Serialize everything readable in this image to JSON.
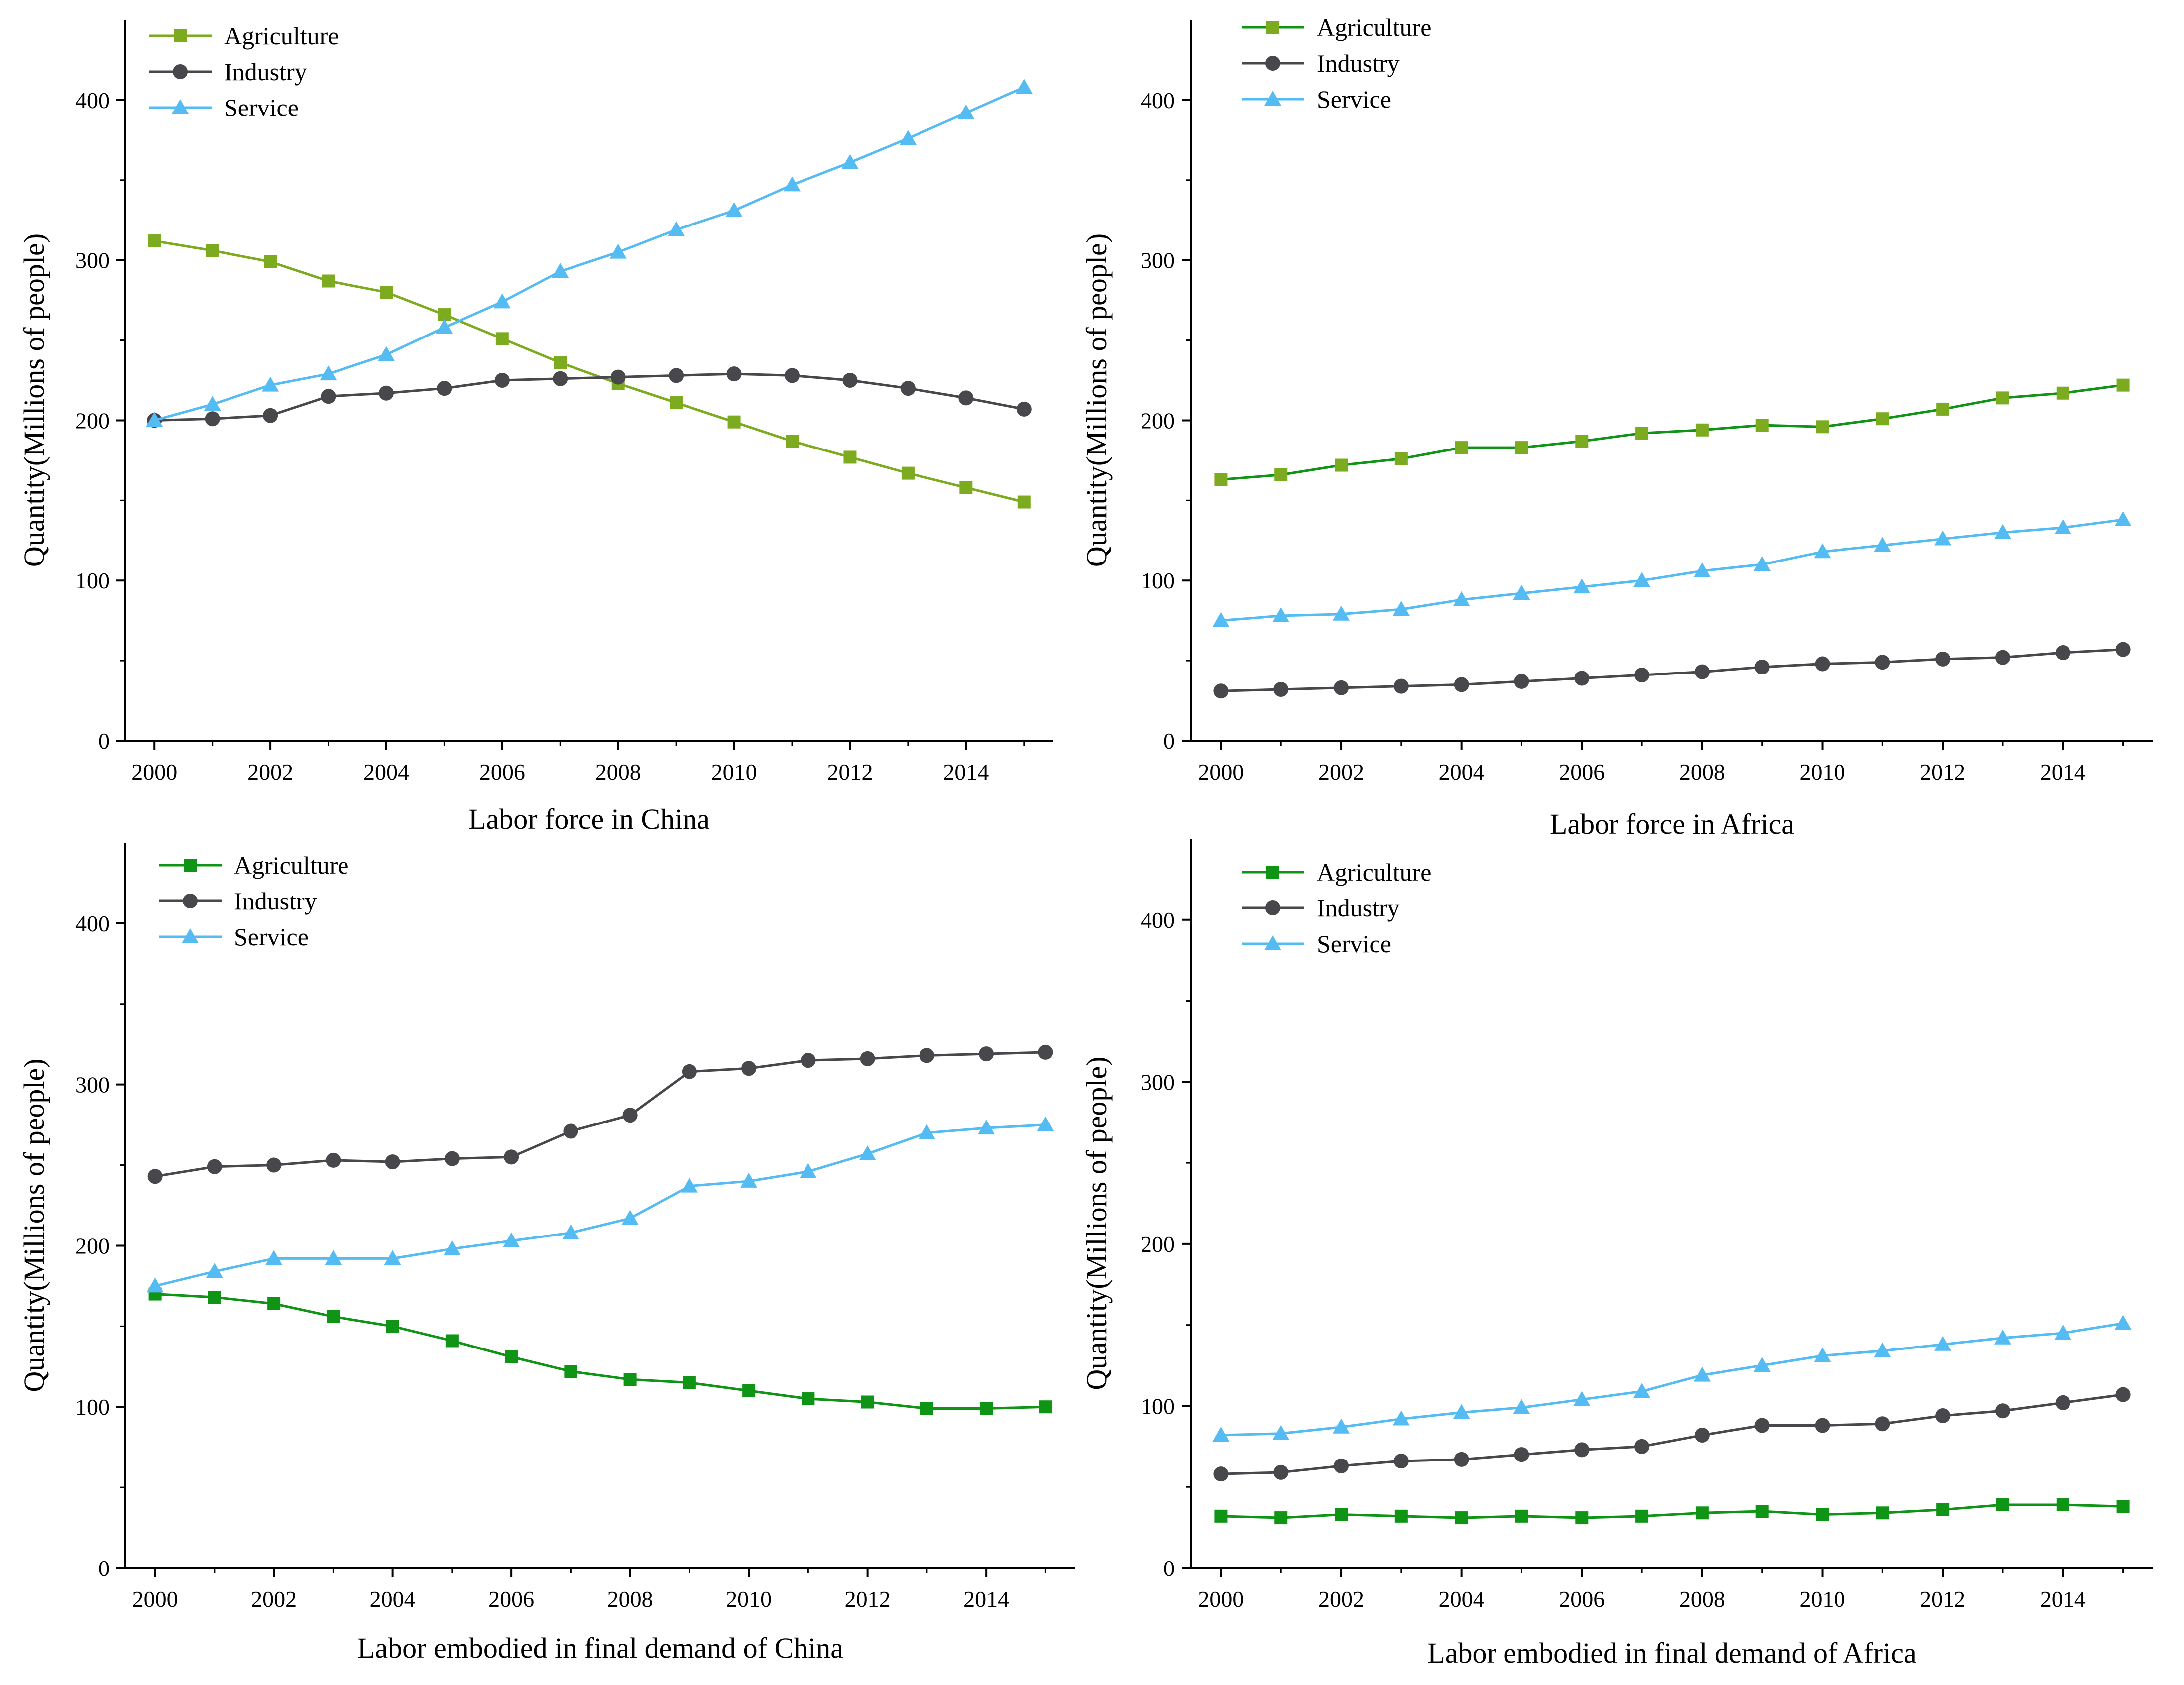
{
  "colors": {
    "agriculture_light": "#7cab1f",
    "agriculture_dark": "#0f9415",
    "industry": "#48484c",
    "service": "#54bcf2"
  },
  "chart_data": [
    {
      "type": "line",
      "title": "Labor force in China",
      "ylabel": "Quantity(Millions of people)",
      "xlabel": "Labor force in China",
      "x": [
        2000,
        2001,
        2002,
        2003,
        2004,
        2005,
        2006,
        2007,
        2008,
        2009,
        2010,
        2011,
        2012,
        2013,
        2014,
        2015
      ],
      "xticks": [
        "2000",
        "2002",
        "2004",
        "2006",
        "2008",
        "2010",
        "2012",
        "2014"
      ],
      "xlim": [
        1999.5,
        2015.5
      ],
      "yticks": [
        "0",
        "100",
        "200",
        "300",
        "400"
      ],
      "ylim": [
        0,
        450
      ],
      "legend_position": "top-left",
      "series": [
        {
          "name": "Agriculture",
          "color_key": "agriculture_light",
          "marker": "square",
          "values": [
            312,
            306,
            299,
            287,
            280,
            266,
            251,
            236,
            223,
            211,
            199,
            187,
            177,
            167,
            158,
            149
          ]
        },
        {
          "name": "Industry",
          "color_key": "industry",
          "marker": "circle",
          "values": [
            200,
            201,
            203,
            215,
            217,
            220,
            225,
            226,
            227,
            228,
            229,
            228,
            225,
            220,
            214,
            207
          ]
        },
        {
          "name": "Service",
          "color_key": "service",
          "marker": "triangle",
          "values": [
            200,
            210,
            222,
            229,
            241,
            258,
            274,
            293,
            305,
            319,
            331,
            347,
            361,
            376,
            392,
            408
          ]
        }
      ]
    },
    {
      "type": "line",
      "title": "Labor force in Africa",
      "ylabel": "Quantity(Millions of people)",
      "xlabel": "Labor force in Africa",
      "x": [
        2000,
        2001,
        2002,
        2003,
        2004,
        2005,
        2006,
        2007,
        2008,
        2009,
        2010,
        2011,
        2012,
        2013,
        2014,
        2015
      ],
      "xticks": [
        "2000",
        "2002",
        "2004",
        "2006",
        "2008",
        "2010",
        "2012",
        "2014"
      ],
      "xlim": [
        1999.5,
        2015.5
      ],
      "yticks": [
        "0",
        "100",
        "200",
        "300",
        "400"
      ],
      "ylim": [
        0,
        450
      ],
      "legend_position": "top-left",
      "series": [
        {
          "name": "Agriculture",
          "color_key": "agriculture_dark",
          "marker": "square",
          "marker_color_key": "agriculture_light",
          "values": [
            163,
            166,
            172,
            176,
            183,
            183,
            187,
            192,
            194,
            197,
            196,
            201,
            207,
            214,
            217,
            222
          ]
        },
        {
          "name": "Industry",
          "color_key": "industry",
          "marker": "circle",
          "values": [
            31,
            32,
            33,
            34,
            35,
            37,
            39,
            41,
            43,
            46,
            48,
            49,
            51,
            52,
            55,
            57
          ]
        },
        {
          "name": "Service",
          "color_key": "service",
          "marker": "triangle",
          "values": [
            75,
            78,
            79,
            82,
            88,
            92,
            96,
            100,
            106,
            110,
            118,
            122,
            126,
            130,
            133,
            138
          ]
        }
      ]
    },
    {
      "type": "line",
      "title": "Labor embodied in final demand of China",
      "ylabel": "Quantity(Millions of people)",
      "xlabel": "Labor embodied in final demand of China",
      "x": [
        2000,
        2001,
        2002,
        2003,
        2004,
        2005,
        2006,
        2007,
        2008,
        2009,
        2010,
        2011,
        2012,
        2013,
        2014,
        2015
      ],
      "xticks": [
        "2000",
        "2002",
        "2004",
        "2006",
        "2008",
        "2010",
        "2012",
        "2014"
      ],
      "xlim": [
        1999.5,
        2015.5
      ],
      "yticks": [
        "0",
        "100",
        "200",
        "300",
        "400"
      ],
      "ylim": [
        0,
        450
      ],
      "legend_position": "top-left",
      "series": [
        {
          "name": "Agriculture",
          "color_key": "agriculture_dark",
          "marker": "square",
          "values": [
            170,
            168,
            164,
            156,
            150,
            141,
            131,
            122,
            117,
            115,
            110,
            105,
            103,
            99,
            99,
            100
          ]
        },
        {
          "name": "Industry",
          "color_key": "industry",
          "marker": "circle",
          "values": [
            243,
            249,
            250,
            253,
            252,
            254,
            255,
            271,
            281,
            308,
            310,
            315,
            316,
            318,
            319,
            320
          ]
        },
        {
          "name": "Service",
          "color_key": "service",
          "marker": "triangle",
          "values": [
            175,
            184,
            192,
            192,
            192,
            198,
            203,
            208,
            217,
            237,
            240,
            246,
            257,
            270,
            273,
            275
          ]
        }
      ]
    },
    {
      "type": "line",
      "title": "Labor embodied in final demand of Africa",
      "ylabel": "Quantity(Millions of people)",
      "xlabel": "Labor embodied in final demand of Africa",
      "x": [
        2000,
        2001,
        2002,
        2003,
        2004,
        2005,
        2006,
        2007,
        2008,
        2009,
        2010,
        2011,
        2012,
        2013,
        2014,
        2015
      ],
      "xticks": [
        "2000",
        "2002",
        "2004",
        "2006",
        "2008",
        "2010",
        "2012",
        "2014"
      ],
      "xlim": [
        1999.5,
        2015.5
      ],
      "yticks": [
        "0",
        "100",
        "200",
        "300",
        "400"
      ],
      "ylim": [
        0,
        450
      ],
      "legend_position": "top-left",
      "series": [
        {
          "name": "Agriculture",
          "color_key": "agriculture_dark",
          "marker": "square",
          "values": [
            32,
            31,
            33,
            32,
            31,
            32,
            31,
            32,
            34,
            35,
            33,
            34,
            36,
            39,
            39,
            38
          ]
        },
        {
          "name": "Industry",
          "color_key": "industry",
          "marker": "circle",
          "values": [
            58,
            59,
            63,
            66,
            67,
            70,
            73,
            75,
            82,
            88,
            88,
            89,
            94,
            97,
            102,
            107
          ]
        },
        {
          "name": "Service",
          "color_key": "service",
          "marker": "triangle",
          "values": [
            82,
            83,
            87,
            92,
            96,
            99,
            104,
            109,
            119,
            125,
            131,
            134,
            138,
            142,
            145,
            151
          ]
        }
      ]
    }
  ]
}
